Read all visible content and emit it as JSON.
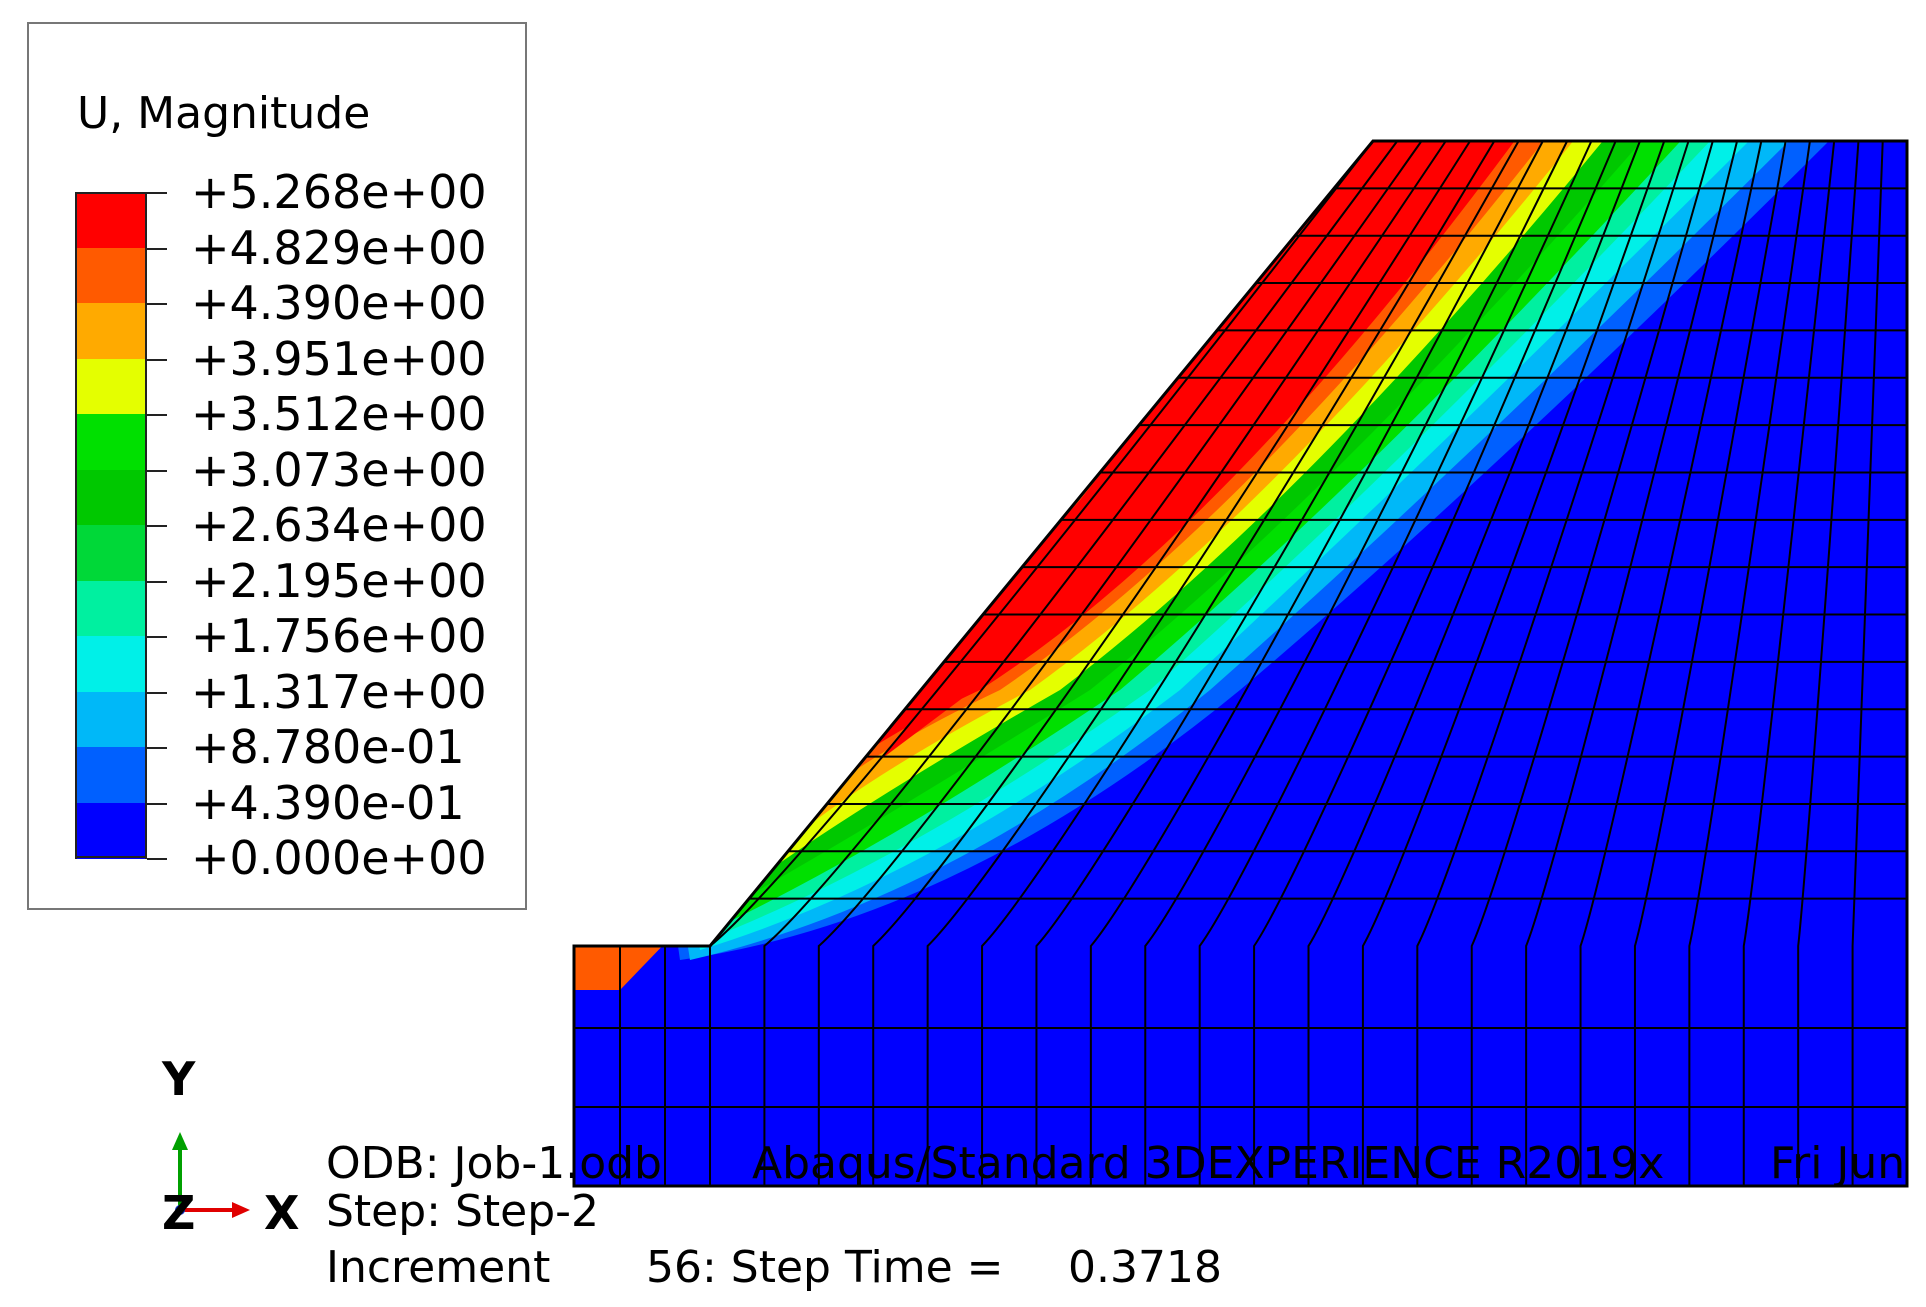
{
  "legend": {
    "title": "U, Magnitude",
    "values": [
      "+5.268e+00",
      "+4.829e+00",
      "+4.390e+00",
      "+3.951e+00",
      "+3.512e+00",
      "+3.073e+00",
      "+2.634e+00",
      "+2.195e+00",
      "+1.756e+00",
      "+1.317e+00",
      "+8.780e-01",
      "+4.390e-01",
      "+0.000e+00"
    ],
    "colors": [
      "#ff0000",
      "#ff5a00",
      "#ffaa00",
      "#e4ff00",
      "#00e000",
      "#00c800",
      "#00d838",
      "#00f0a0",
      "#00f0e8",
      "#00b8f8",
      "#0060ff",
      "#0000ff"
    ]
  },
  "triad": {
    "y_label": "Y",
    "x_label": "X",
    "z_label": "Z"
  },
  "info": {
    "odb": "ODB: Job-1.odb",
    "solver": "Abaqus/Standard 3DEXPERIENCE R2019x",
    "date": "Fri Jun",
    "step": "Step: Step-2",
    "increment_label": "Increment",
    "increment_value": "56: Step Time =",
    "step_time": "0.3718"
  }
}
